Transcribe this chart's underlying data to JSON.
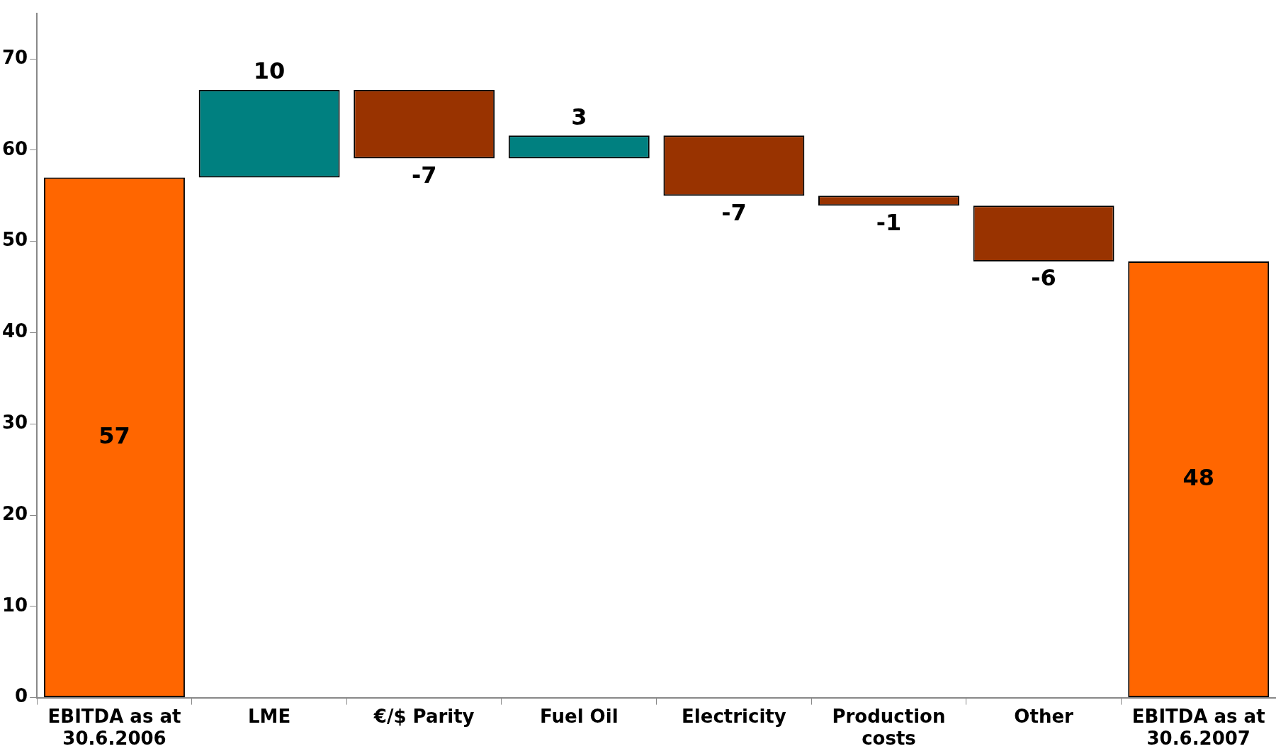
{
  "chart_data": {
    "type": "bar",
    "categories": [
      "EBITDA as at 30.6.2006",
      "LME",
      "€/$ Parity",
      "Fuel Oil",
      "Electricity",
      "Production costs",
      "Other",
      "EBITDA as at 30.6.2007"
    ],
    "values": [
      57,
      9.6,
      -7.5,
      2.5,
      -6.6,
      -1.1,
      -6.1,
      47.8
    ],
    "base": [
      0,
      57,
      66.6,
      59.1,
      61.6,
      55,
      53.9,
      0
    ],
    "colors": [
      "#ff6600",
      "#008080",
      "#993300",
      "#008080",
      "#993300",
      "#993300",
      "#993300",
      "#ff6600"
    ],
    "value_labels": [
      "57",
      "10",
      "-7",
      "3",
      "-7",
      "-1",
      "-6",
      "48"
    ],
    "ylim": [
      0,
      75
    ],
    "yticks": [
      0,
      10,
      20,
      30,
      40,
      50,
      60,
      70
    ],
    "grid": false,
    "legend": false
  }
}
